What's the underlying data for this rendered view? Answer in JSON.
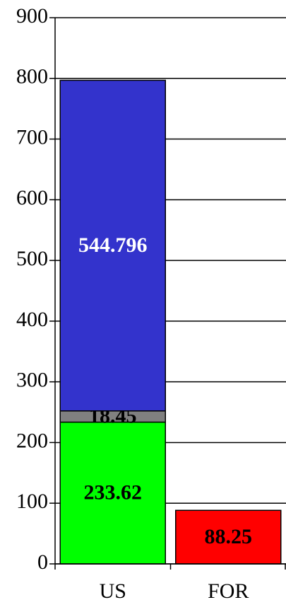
{
  "chart_data": {
    "type": "stacked_bar",
    "categories": [
      "US",
      "FOR"
    ],
    "series": [
      {
        "color": "#00ff00",
        "label_color": "#000000",
        "values": [
          233.62,
          null
        ]
      },
      {
        "color": "#808080",
        "label_color": "#000000",
        "values": [
          18.45,
          null
        ]
      },
      {
        "color": "#3333cc",
        "label_color": "#ffffff",
        "values": [
          544.796,
          null
        ]
      },
      {
        "color": "#ff0000",
        "label_color": "#000000",
        "values": [
          null,
          88.25
        ]
      }
    ],
    "ylim": [
      0,
      900
    ],
    "yticks": [
      0,
      100,
      200,
      300,
      400,
      500,
      600,
      700,
      800,
      900
    ],
    "grid": true,
    "data_labels": true
  }
}
